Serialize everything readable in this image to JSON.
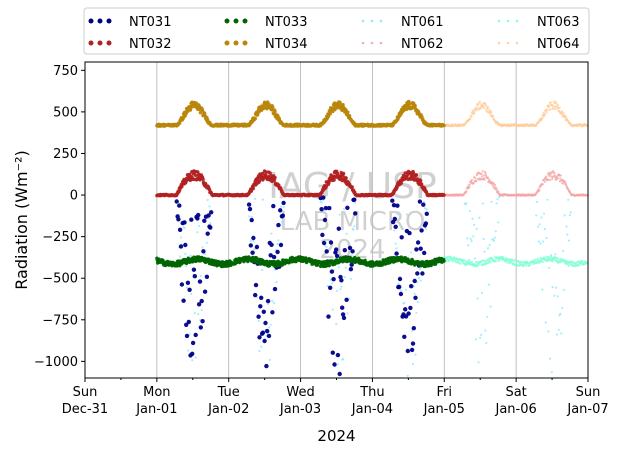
{
  "chart_data": {
    "type": "scatter",
    "xlabel": "2024",
    "ylabel": "Radiation (Wm⁻²)",
    "ylim": [
      -1100,
      800
    ],
    "y_ticks": [
      750,
      500,
      250,
      0,
      -250,
      -500,
      -750,
      -1000
    ],
    "y_tick_labels": [
      "750",
      "500",
      "250",
      "0",
      "−250",
      "−500",
      "−750",
      "−1000"
    ],
    "x_range": [
      "2023-12-31",
      "2024-01-07"
    ],
    "x_ticks": [
      {
        "date": "2023-12-31",
        "day": "Sun",
        "label": "Dec-31"
      },
      {
        "date": "2024-01-01",
        "day": "Mon",
        "label": "Jan-01"
      },
      {
        "date": "2024-01-02",
        "day": "Tue",
        "label": "Jan-02"
      },
      {
        "date": "2024-01-03",
        "day": "Wed",
        "label": "Jan-03"
      },
      {
        "date": "2024-01-04",
        "day": "Thu",
        "label": "Jan-04"
      },
      {
        "date": "2024-01-05",
        "day": "Fri",
        "label": "Jan-05"
      },
      {
        "date": "2024-01-06",
        "day": "Sat",
        "label": "Jan-06"
      },
      {
        "date": "2024-01-07",
        "day": "Sun",
        "label": "Jan-07"
      }
    ],
    "grid": "vertical",
    "legend_position": "top",
    "watermark": [
      "IAG / USP",
      "LAB MICRO",
      "2024"
    ],
    "series": [
      {
        "name": "NT031",
        "color": "#00008b",
        "style": "dots",
        "range": [
          "2024-01-01",
          "2024-01-05"
        ],
        "kind": "sw_out"
      },
      {
        "name": "NT032",
        "color": "#b22222",
        "style": "dots",
        "range": [
          "2024-01-01",
          "2024-01-05"
        ],
        "kind": "net"
      },
      {
        "name": "NT033",
        "color": "#006400",
        "style": "dots",
        "range": [
          "2024-01-01",
          "2024-01-05"
        ],
        "kind": "lw_out"
      },
      {
        "name": "NT034",
        "color": "#b8860b",
        "style": "dots",
        "range": [
          "2024-01-01",
          "2024-01-05"
        ],
        "kind": "lw_in"
      },
      {
        "name": "NT061",
        "color": "#87e8ff",
        "style": "faint",
        "range": [
          "2024-01-01",
          "2024-01-07"
        ],
        "kind": "sw_out"
      },
      {
        "name": "NT062",
        "color": "#f4a6a6",
        "style": "faint",
        "range": [
          "2024-01-01",
          "2024-01-07"
        ],
        "kind": "net"
      },
      {
        "name": "NT063",
        "color": "#7fffd4",
        "style": "faint",
        "range": [
          "2024-01-01",
          "2024-01-07"
        ],
        "kind": "lw_out"
      },
      {
        "name": "NT064",
        "color": "#ffcc99",
        "style": "faint",
        "range": [
          "2024-01-01",
          "2024-01-07"
        ],
        "kind": "lw_in"
      }
    ],
    "approx_levels": {
      "lw_in_night": 420,
      "lw_in_day_peak": 540,
      "net_night": 0,
      "net_day_peak": 130,
      "lw_out_mean": -400,
      "sw_out_min": -1050
    }
  }
}
